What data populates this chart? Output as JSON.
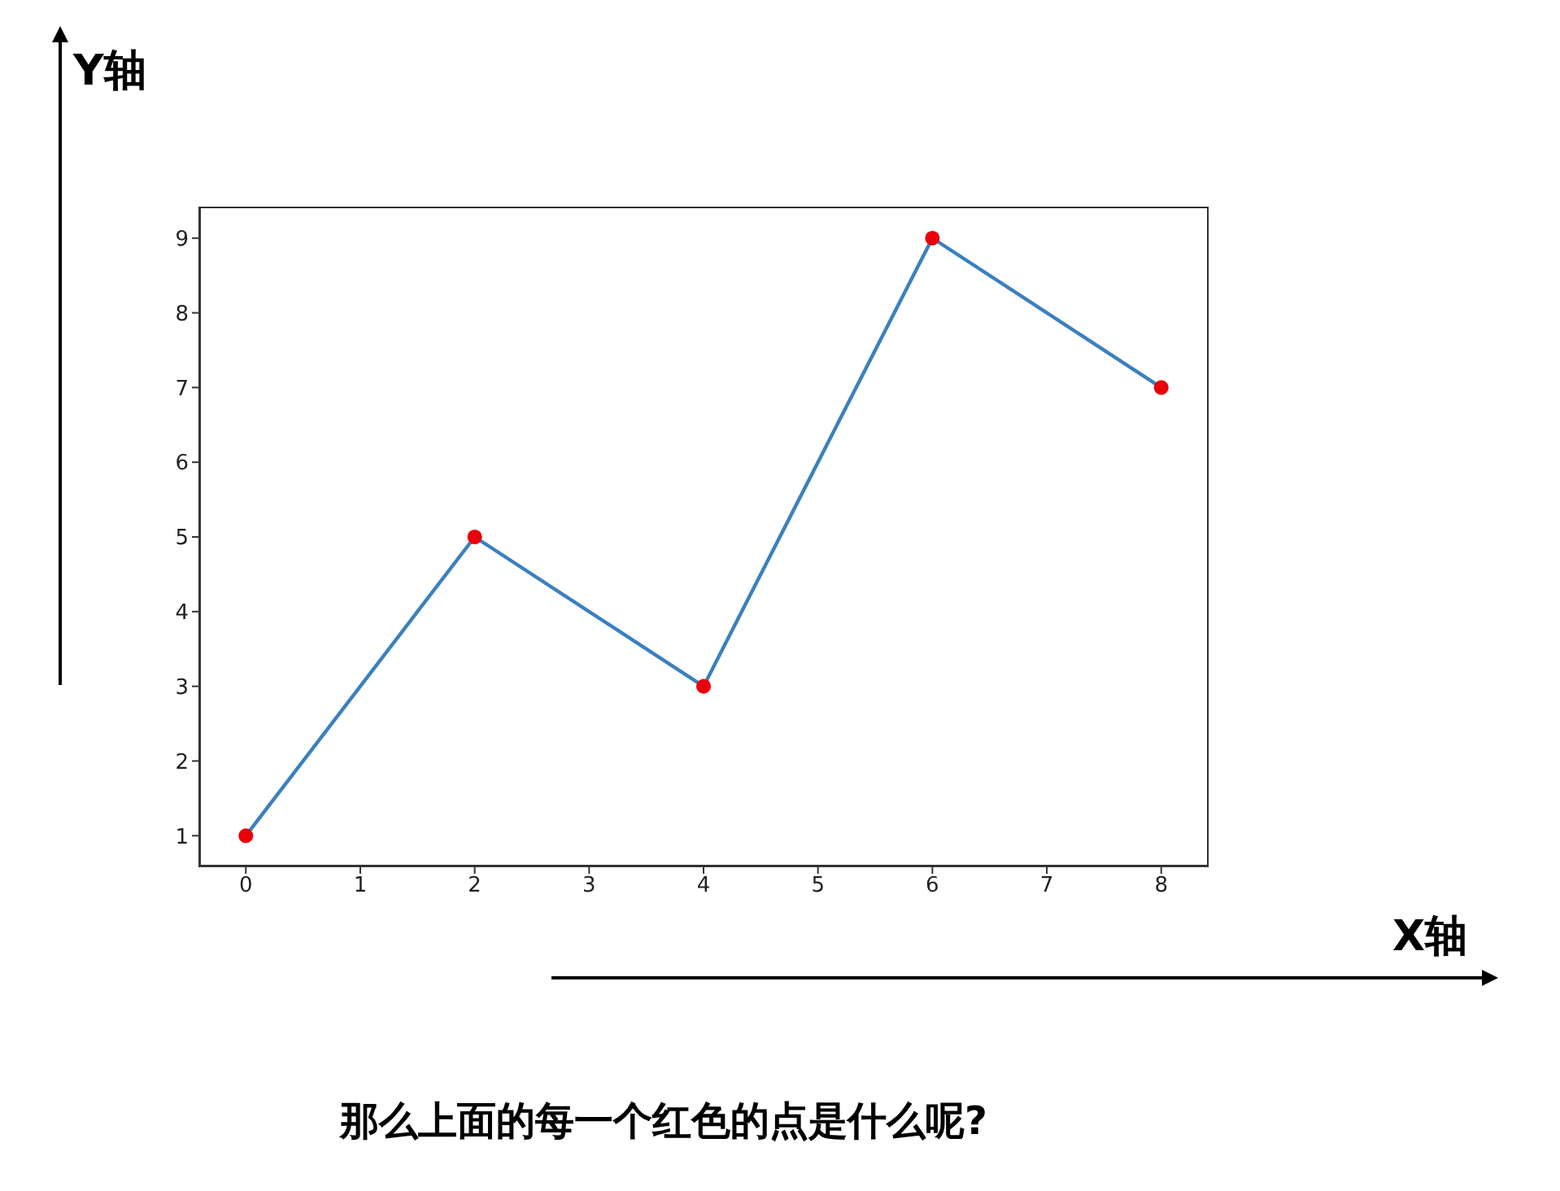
{
  "chart_data": {
    "type": "line",
    "xlabel": "X轴",
    "ylabel": "Y轴",
    "x": [
      0,
      2,
      4,
      6,
      8
    ],
    "series": [
      {
        "color": "#3b80bf",
        "values": [
          1,
          5,
          3,
          9,
          7
        ]
      },
      {
        "type": "scatter",
        "marker": "circle",
        "color": "#e8000b",
        "values": [
          1,
          5,
          3,
          9,
          7
        ]
      }
    ],
    "xlim": [
      -0.4,
      8.4
    ],
    "xticks": [
      0,
      1,
      2,
      3,
      4,
      5,
      6,
      7,
      8
    ],
    "ylim": [
      0.6,
      9.4
    ],
    "yticks": [
      1,
      2,
      3,
      4,
      5,
      6,
      7,
      8,
      9
    ],
    "grid": false,
    "legend": false,
    "annotations": [
      "那么上面的每一个红色的点是什么呢?"
    ]
  }
}
